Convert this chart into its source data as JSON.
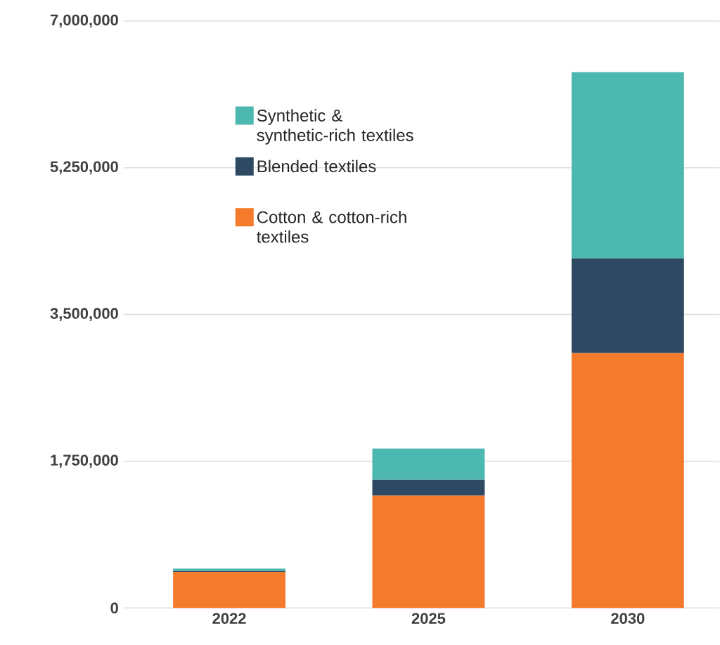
{
  "chart_data": {
    "type": "bar",
    "stacked": true,
    "categories": [
      "2022",
      "2025",
      "2030"
    ],
    "series": [
      {
        "name": "Cotton & cotton-rich textiles",
        "color": "#f47a2c",
        "values": [
          430000,
          1340000,
          3040000
        ]
      },
      {
        "name": "Blended textiles",
        "color": "#2e4a63",
        "values": [
          10000,
          190000,
          1130000
        ]
      },
      {
        "name": "Synthetic & synthetic-rich textiles",
        "color": "#4db8b0",
        "values": [
          30000,
          370000,
          2220000
        ]
      }
    ],
    "ylim": [
      0,
      7000000
    ],
    "yticks": [
      {
        "value": 0,
        "label": "0"
      },
      {
        "value": 1750000,
        "label": "1,750,000"
      },
      {
        "value": 3500000,
        "label": "3,500,000"
      },
      {
        "value": 5250000,
        "label": "5,250,000"
      },
      {
        "value": 7000000,
        "label": "7,000,000"
      }
    ],
    "grid": "y",
    "legend": "top left"
  }
}
